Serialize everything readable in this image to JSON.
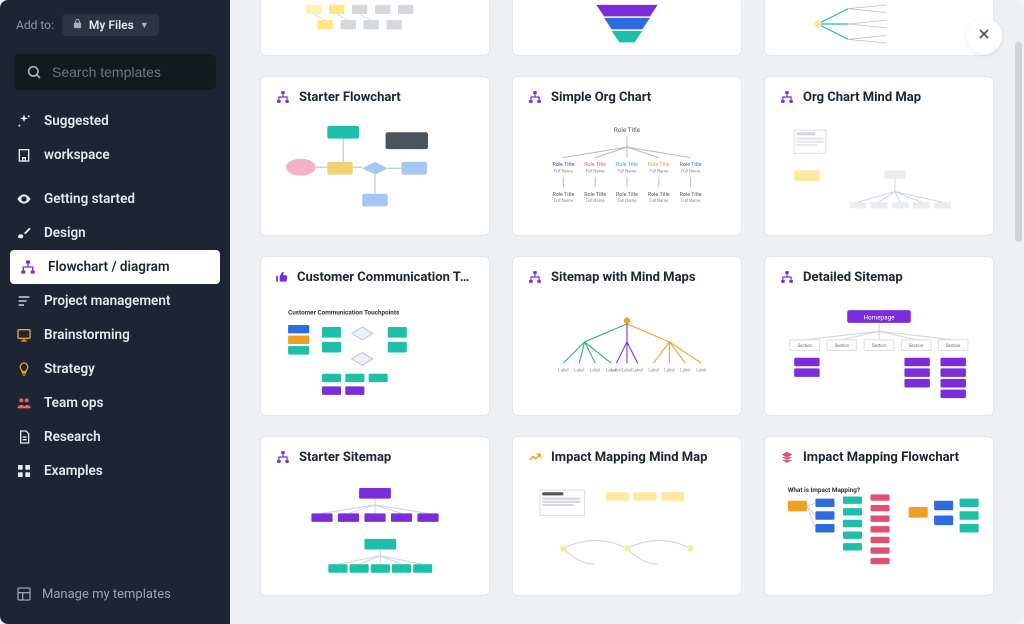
{
  "sidebar": {
    "addto_label": "Add to:",
    "folder": "My Files",
    "search_placeholder": "Search templates",
    "categories": [
      {
        "label": "Suggested",
        "icon": "sparkle",
        "color": "#e3e9ef"
      },
      {
        "label": "workspace",
        "icon": "building",
        "color": "#e3e9ef"
      },
      {
        "label": "Getting started",
        "icon": "eye",
        "color": "#e3e9ef",
        "gap": true
      },
      {
        "label": "Design",
        "icon": "brush",
        "color": "#e3e9ef"
      },
      {
        "label": "Flowchart / diagram",
        "icon": "org",
        "color": "#7b2dd9",
        "selected": true
      },
      {
        "label": "Project management",
        "icon": "lines",
        "color": "#e3e9ef"
      },
      {
        "label": "Brainstorming",
        "icon": "board",
        "color": "#f0a020"
      },
      {
        "label": "Strategy",
        "icon": "bulb",
        "color": "#f0a020"
      },
      {
        "label": "Team ops",
        "icon": "people",
        "color": "#f06060"
      },
      {
        "label": "Research",
        "icon": "doc",
        "color": "#e3e9ef"
      },
      {
        "label": "Examples",
        "icon": "grid",
        "color": "#e3e9ef"
      }
    ],
    "manage_label": "Manage my templates"
  },
  "templates": [
    {
      "title": "Starter Flowchart",
      "icon_color": "#7b2dd9",
      "thumb": "flowchart"
    },
    {
      "title": "Simple Org Chart",
      "icon_color": "#7b2dd9",
      "thumb": "orgchart"
    },
    {
      "title": "Org Chart Mind Map",
      "icon_color": "#7b2dd9",
      "thumb": "orgmind"
    },
    {
      "title": "Customer Communication Touchpoints",
      "icon_color": "#7b2dd9",
      "thumb": "touchpoints",
      "thumbs_up": true
    },
    {
      "title": "Sitemap with Mind Maps",
      "icon_color": "#7b2dd9",
      "thumb": "sitemapmind"
    },
    {
      "title": "Detailed Sitemap",
      "icon_color": "#7b2dd9",
      "thumb": "detailsitemap"
    },
    {
      "title": "Starter Sitemap",
      "icon_color": "#7b2dd9",
      "thumb": "startersitemap"
    },
    {
      "title": "Impact Mapping Mind Map",
      "icon_color": "#f0a020",
      "thumb": "impactmind",
      "trend": true
    },
    {
      "title": "Impact Mapping Flowchart",
      "icon_color": "#e05070",
      "thumb": "impactflow",
      "stack": true
    }
  ],
  "colors": {
    "teal": "#1dbfa8",
    "purple": "#7b2dd9",
    "blue": "#2d6cdf",
    "orange": "#f0a020",
    "pink": "#f4b2c5",
    "bluelight": "#a7c6f2",
    "grey": "#d3d8df",
    "green": "#27b36a"
  }
}
